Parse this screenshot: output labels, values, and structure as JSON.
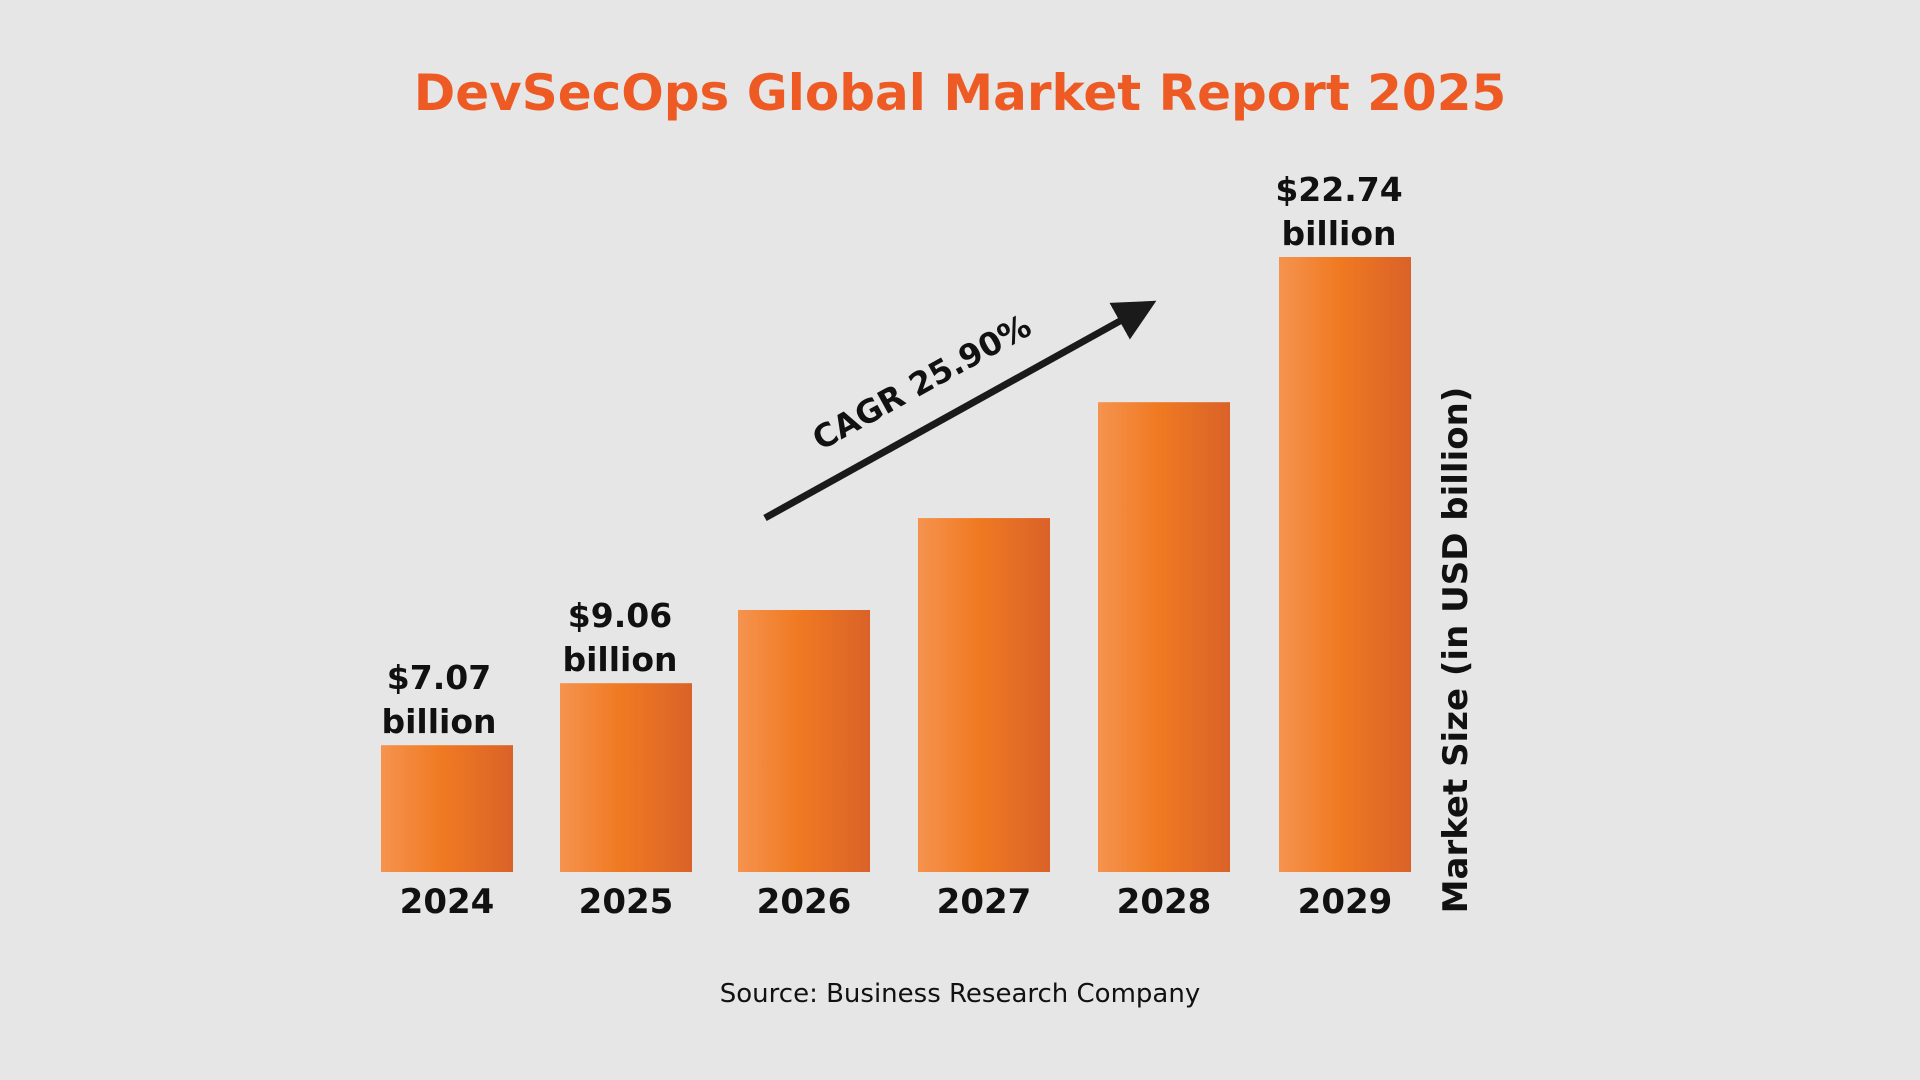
{
  "colors": {
    "title": "#ee5a24",
    "bar_light": "#f5934f",
    "bar_mid": "#f07a22",
    "bar_dark": "#da6228",
    "background": "#e6e6e6"
  },
  "chart_data": {
    "type": "bar",
    "title": "DevSecOps Global Market Report 2025",
    "xlabel": "",
    "ylabel": "Market Size (in USD billion)",
    "categories": [
      "2024",
      "2025",
      "2026",
      "2027",
      "2028",
      "2029"
    ],
    "values": [
      7.07,
      9.06,
      11.41,
      14.36,
      18.08,
      22.74
    ],
    "data_labels": [
      {
        "index": 0,
        "value": "$7.07",
        "unit": "billion"
      },
      {
        "index": 1,
        "value": "$9.06",
        "unit": "billion"
      },
      {
        "index": 5,
        "value": "$22.74",
        "unit": "billion"
      }
    ],
    "annotation": "CAGR 25.90%",
    "grid": false,
    "legend": "none",
    "source": "Source: Business Research Company"
  }
}
